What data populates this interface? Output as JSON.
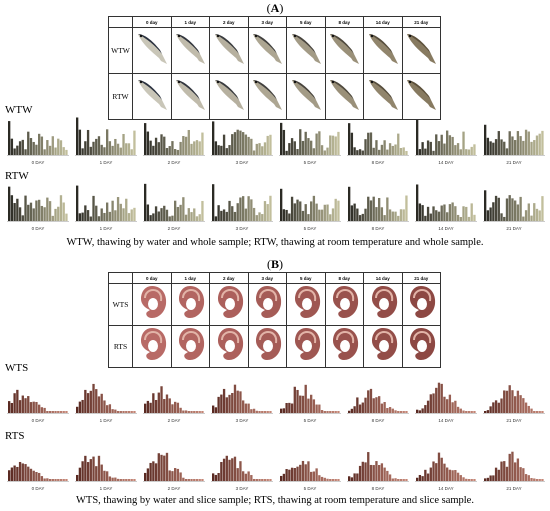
{
  "panel_a": {
    "label": "A",
    "days": [
      "0 day",
      "1 day",
      "2 day",
      "3 day",
      "5 day",
      "8 day",
      "14 day",
      "21 day"
    ],
    "rows": [
      "WTW",
      "RTW"
    ],
    "caption": "WTW, thawing by water and whole sample; RTW, thawing at room temperature and whole sample.",
    "hist_groups": [
      {
        "label": "WTW",
        "hist_labels": [
          "0 DAY",
          "1 DAY",
          "2 DAY",
          "3 DAY",
          "5 DAY",
          "8 DAY",
          "14 DAY",
          "21 DAY"
        ]
      },
      {
        "label": "RTW",
        "hist_labels": [
          "0 DAY",
          "1 DAY",
          "2 DAY",
          "3 DAY",
          "5 DAY",
          "8 DAY",
          "14 DAY",
          "21 DAY"
        ]
      }
    ]
  },
  "panel_b": {
    "label": "B",
    "days": [
      "0 day",
      "1 day",
      "2 day",
      "3 day",
      "5 day",
      "8 day",
      "14 day",
      "21 day"
    ],
    "rows": [
      "WTS",
      "RTS"
    ],
    "caption": "WTS, thawing by water and slice sample; RTS, thawing at room temperature and slice sample.",
    "hist_groups": [
      {
        "label": "WTS",
        "hist_labels": [
          "0 DAY",
          "1 DAY",
          "2 DAY",
          "3 DAY",
          "5 DAY",
          "8 DAY",
          "14 DAY",
          "21 DAY"
        ]
      },
      {
        "label": "RTS",
        "hist_labels": [
          "0 DAY",
          "1 DAY",
          "2 DAY",
          "3 DAY",
          "5 DAY",
          "8 DAY",
          "14 DAY",
          "21 DAY"
        ]
      }
    ]
  },
  "colors": {
    "fish_dark": "#2c3340",
    "fish_light": "#c9c6b8",
    "fish_old": "#6b5a3a",
    "slice_flesh": "#b86a66",
    "slice_light": "#e2b4a8",
    "hist_dark_a": "#2b2a24",
    "hist_light_a": "#c9c6a2",
    "hist_dark_b": "#5a2a22",
    "hist_light_b": "#c98a7a"
  }
}
